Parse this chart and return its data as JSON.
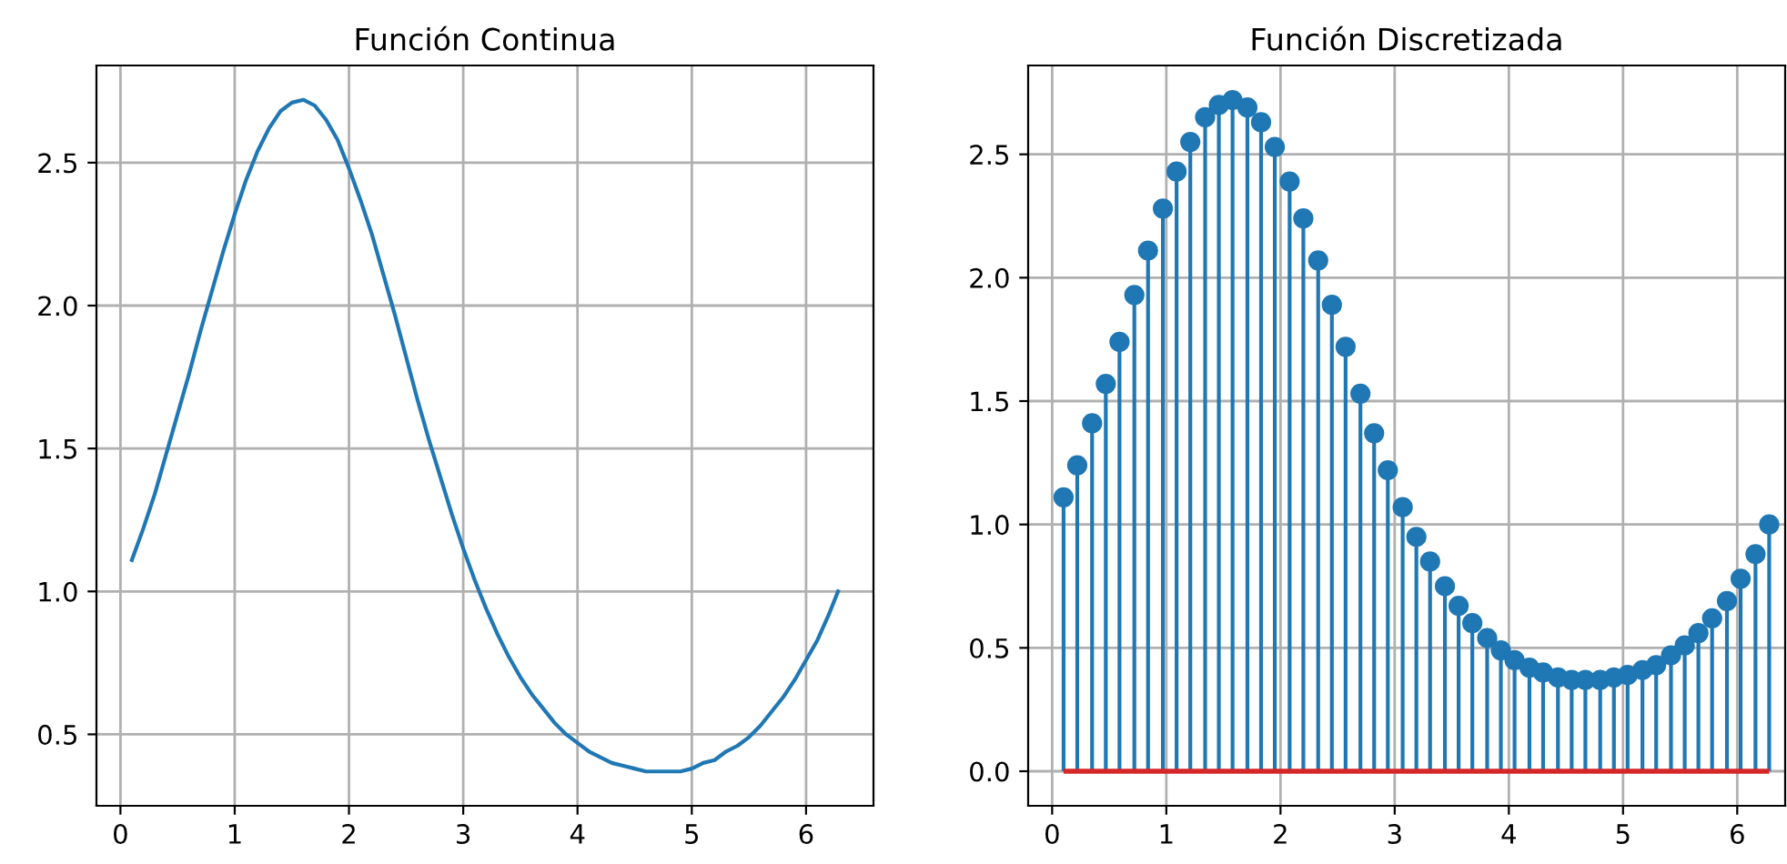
{
  "chart_data": [
    {
      "type": "line",
      "title": "Función Continua",
      "xlim": [
        -0.21,
        6.59
      ],
      "ylim": [
        0.25,
        2.84
      ],
      "xticks": [
        0,
        1,
        2,
        3,
        4,
        5,
        6
      ],
      "yticks": [
        0.5,
        {
          "value": 1,
          "label": "1.0"
        },
        1.5,
        {
          "value": 2,
          "label": "2.0"
        },
        2.5
      ],
      "grid": true,
      "marker": "none",
      "series": [
        {
          "color": "#1f77b4",
          "x": [
            0.1,
            0.2,
            0.3,
            0.4,
            0.5,
            0.6,
            0.7,
            0.8,
            0.9,
            1.0,
            1.1,
            1.2,
            1.3,
            1.4,
            1.5,
            1.6,
            1.7,
            1.8,
            1.9,
            2.0,
            2.1,
            2.2,
            2.3,
            2.4,
            2.5,
            2.6,
            2.7,
            2.8,
            2.9,
            3.0,
            3.1,
            3.2,
            3.3,
            3.4,
            3.5,
            3.6,
            3.7,
            3.8,
            3.9,
            4.0,
            4.1,
            4.2,
            4.3,
            4.4,
            4.5,
            4.6,
            4.7,
            4.8,
            4.9,
            5.0,
            5.1,
            5.2,
            5.3,
            5.4,
            5.5,
            5.6,
            5.7,
            5.8,
            5.9,
            6.0,
            6.1,
            6.2,
            6.28
          ],
          "values": [
            1.11,
            1.22,
            1.34,
            1.48,
            1.62,
            1.76,
            1.91,
            2.05,
            2.19,
            2.32,
            2.44,
            2.54,
            2.62,
            2.68,
            2.71,
            2.72,
            2.7,
            2.65,
            2.58,
            2.48,
            2.37,
            2.25,
            2.11,
            1.97,
            1.82,
            1.67,
            1.53,
            1.4,
            1.27,
            1.15,
            1.04,
            0.94,
            0.85,
            0.77,
            0.7,
            0.64,
            0.59,
            0.54,
            0.5,
            0.47,
            0.44,
            0.42,
            0.4,
            0.39,
            0.38,
            0.37,
            0.37,
            0.37,
            0.37,
            0.38,
            0.4,
            0.41,
            0.44,
            0.46,
            0.49,
            0.53,
            0.58,
            0.63,
            0.69,
            0.76,
            0.83,
            0.92,
            1.0
          ]
        }
      ]
    },
    {
      "type": "lollipop",
      "title": "Función Discretizada",
      "xlim": [
        -0.21,
        6.42
      ],
      "ylim": [
        -0.14,
        2.86
      ],
      "xticks": [
        0,
        1,
        2,
        3,
        4,
        5,
        6
      ],
      "yticks": [
        {
          "value": 0,
          "label": "0.0"
        },
        0.5,
        {
          "value": 1,
          "label": "1.0"
        },
        1.5,
        {
          "value": 2,
          "label": "2.0"
        },
        2.5
      ],
      "grid": true,
      "marker": "circle",
      "ref_lines": [
        {
          "axis": "y",
          "value": 0,
          "color": "#d62728"
        }
      ],
      "series": [
        {
          "color": "#1f77b4",
          "x": [
            0.1,
            0.22,
            0.35,
            0.47,
            0.59,
            0.72,
            0.84,
            0.97,
            1.09,
            1.21,
            1.34,
            1.46,
            1.58,
            1.71,
            1.83,
            1.95,
            2.08,
            2.2,
            2.33,
            2.45,
            2.57,
            2.7,
            2.82,
            2.94,
            3.07,
            3.19,
            3.31,
            3.44,
            3.56,
            3.68,
            3.81,
            3.93,
            4.05,
            4.18,
            4.3,
            4.43,
            4.55,
            4.67,
            4.8,
            4.92,
            5.04,
            5.17,
            5.29,
            5.42,
            5.54,
            5.66,
            5.78,
            5.91,
            6.03,
            6.16,
            6.28
          ],
          "values": [
            1.11,
            1.24,
            1.41,
            1.57,
            1.74,
            1.93,
            2.11,
            2.28,
            2.43,
            2.55,
            2.65,
            2.7,
            2.72,
            2.69,
            2.63,
            2.53,
            2.39,
            2.24,
            2.07,
            1.89,
            1.72,
            1.53,
            1.37,
            1.22,
            1.07,
            0.95,
            0.85,
            0.75,
            0.67,
            0.6,
            0.54,
            0.49,
            0.45,
            0.42,
            0.4,
            0.38,
            0.37,
            0.37,
            0.37,
            0.38,
            0.39,
            0.41,
            0.43,
            0.47,
            0.51,
            0.56,
            0.62,
            0.69,
            0.78,
            0.88,
            1.0
          ]
        }
      ]
    }
  ]
}
